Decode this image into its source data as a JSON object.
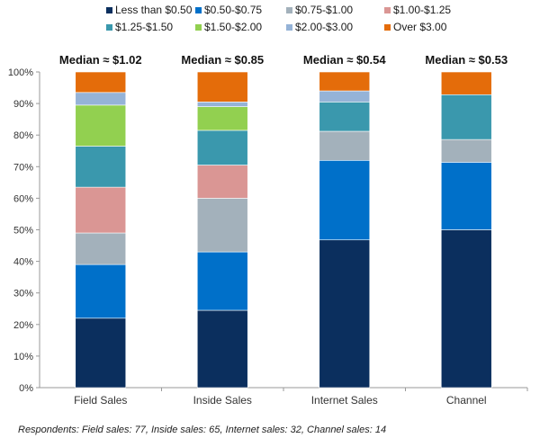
{
  "chart_data": {
    "type": "bar",
    "stacked": true,
    "categories": [
      "Field Sales",
      "Inside Sales",
      "Internet Sales",
      "Channel"
    ],
    "medians": [
      "Median ≈ $1.02",
      "Median ≈ $0.85",
      "Median ≈ $0.54",
      "Median ≈ $0.53"
    ],
    "series": [
      {
        "name": "Less than $0.50",
        "color": "#0b2f5e",
        "values": [
          22,
          24.5,
          46.8,
          50
        ]
      },
      {
        "name": "$0.50-$0.75",
        "color": "#0070c9",
        "values": [
          17,
          18.5,
          25.2,
          21.4
        ]
      },
      {
        "name": "$0.75-$1.00",
        "color": "#a3b1bb",
        "values": [
          10,
          17,
          9.2,
          7.2
        ]
      },
      {
        "name": "$1.00-$1.25",
        "color": "#da9694",
        "values": [
          14.5,
          10.5,
          0,
          0
        ]
      },
      {
        "name": "$1.25-$1.50",
        "color": "#3a98ad",
        "values": [
          13,
          11,
          9.3,
          14.2
        ]
      },
      {
        "name": "$1.50-$2.00",
        "color": "#92d050",
        "values": [
          13,
          7.5,
          0,
          0
        ]
      },
      {
        "name": "$2.00-$3.00",
        "color": "#95b3d7",
        "values": [
          4,
          1.5,
          3.5,
          0
        ]
      },
      {
        "name": "Over $3.00",
        "color": "#e46c0a",
        "values": [
          6.5,
          9.5,
          6,
          7.2
        ]
      }
    ],
    "yticks": [
      "0%",
      "10%",
      "20%",
      "30%",
      "40%",
      "50%",
      "60%",
      "70%",
      "80%",
      "90%",
      "100%"
    ],
    "ylim": [
      0,
      100
    ],
    "xlabel": "",
    "ylabel": ""
  },
  "footnote": "Respondents: Field sales: 77, Inside sales: 65, Internet sales: 32, Channel sales: 14"
}
